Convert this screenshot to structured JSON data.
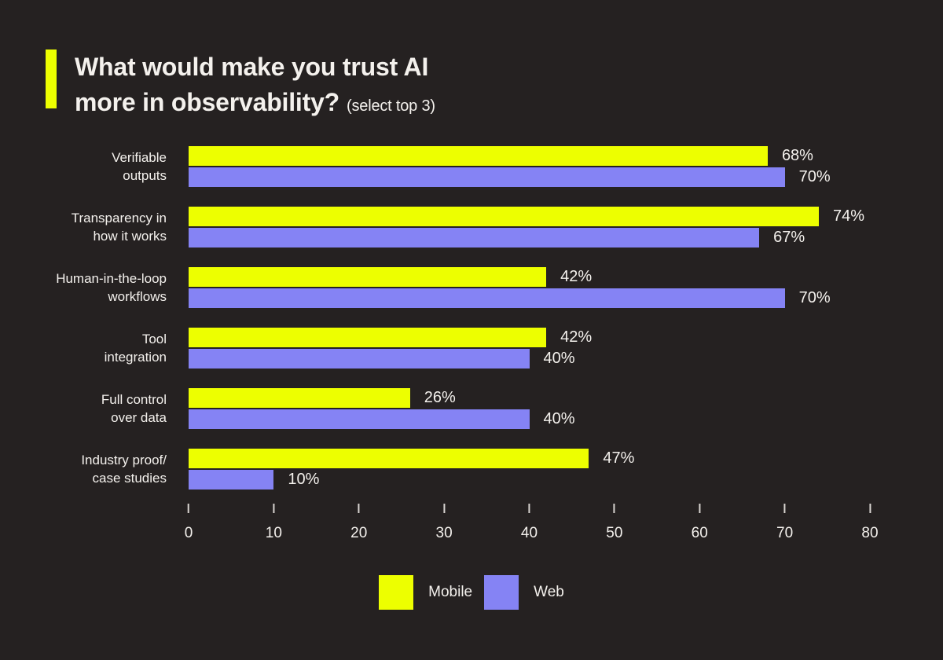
{
  "header": {
    "title_line1": "What would make you trust AI",
    "title_line2": "more in observability?",
    "title_suffix": "(select top 3)"
  },
  "chart_data": {
    "type": "bar",
    "orientation": "horizontal",
    "title": "What would make you trust AI more in observability? (select top 3)",
    "categories": [
      "Verifiable outputs",
      "Transparency in how it works",
      "Human-in-the-loop workflows",
      "Tool integration",
      "Full control over data",
      "Industry proof/case studies"
    ],
    "category_lines": [
      [
        "Verifiable",
        "outputs"
      ],
      [
        "Transparency in",
        "how it works"
      ],
      [
        "Human-in-the-loop",
        "workflows"
      ],
      [
        "Tool",
        "integration"
      ],
      [
        "Full control",
        "over data"
      ],
      [
        "Industry proof/",
        "case studies"
      ]
    ],
    "series": [
      {
        "name": "Mobile",
        "color": "#EDFF00",
        "values": [
          68,
          74,
          42,
          42,
          26,
          47
        ]
      },
      {
        "name": "Web",
        "color": "#8583F4",
        "values": [
          70,
          67,
          70,
          40,
          40,
          10
        ]
      }
    ],
    "value_suffix": "%",
    "xlim": [
      0,
      80
    ],
    "ticks": [
      0,
      10,
      20,
      30,
      40,
      50,
      60,
      70,
      80
    ],
    "legend_position": "bottom",
    "grid": false
  },
  "colors": {
    "background": "#252121",
    "accent_yellow": "#EDFF00",
    "series_mobile": "#EDFF00",
    "series_web": "#8583F4",
    "text": "#F4F1ED",
    "tick": "#D9D5D1"
  }
}
